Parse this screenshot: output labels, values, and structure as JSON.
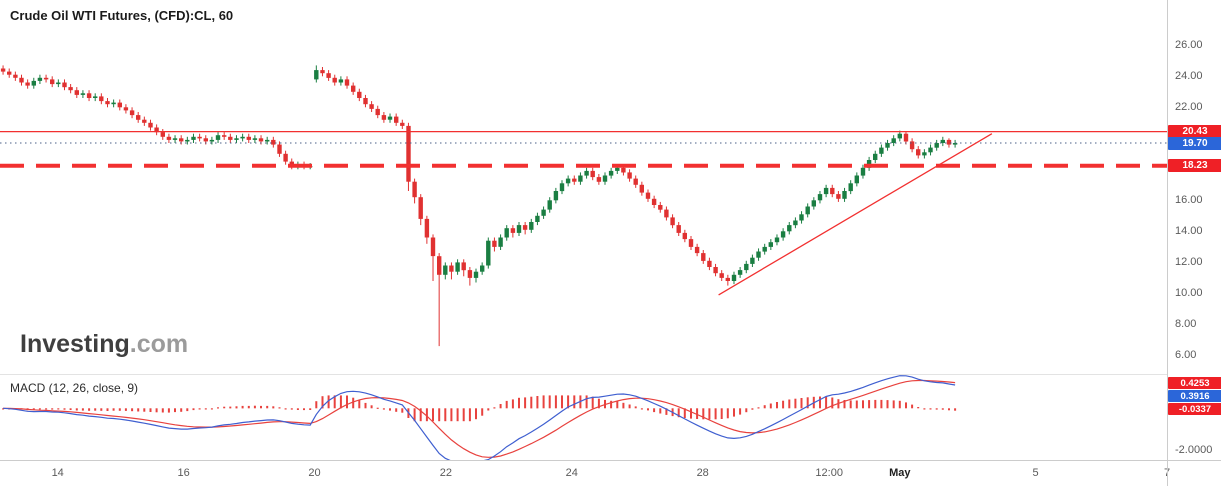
{
  "header": {
    "title": "Crude Oil WTI Futures, (CFD):CL, 60"
  },
  "watermark": {
    "brand": "Investing",
    "tld": ".com"
  },
  "macd": {
    "label": "MACD (12, 26, close, 9)"
  },
  "chart_data": {
    "type": "candlestick",
    "title": "Crude Oil WTI Futures, (CFD):CL, 60",
    "symbol": "(CFD):CL",
    "interval_minutes": "60",
    "grid": "off",
    "colors": {
      "up": "#1a7e42",
      "down": "#e03131",
      "level_red": "#f23030",
      "level_blue_dotted": "#4a5f87",
      "badge_red": "#ef2026",
      "badge_blue": "#2b66d9",
      "axis_text": "#5a5a5a"
    },
    "price_axis": {
      "ylim": [
        4.8,
        28.92
      ],
      "ticks": [
        {
          "label": "26.00",
          "value": 26
        },
        {
          "label": "24.00",
          "value": 24
        },
        {
          "label": "22.00",
          "value": 22
        },
        {
          "label": "16.00",
          "value": 16
        },
        {
          "label": "14.00",
          "value": 14
        },
        {
          "label": "12.00",
          "value": 12
        },
        {
          "label": "10.00",
          "value": 10
        },
        {
          "label": "8.00",
          "value": 8
        },
        {
          "label": "6.00",
          "value": 6
        }
      ],
      "badges": [
        {
          "label": "20.43",
          "value": 20.43,
          "color": "red"
        },
        {
          "label": "19.70",
          "value": 19.7,
          "color": "blue"
        },
        {
          "label": "18.23",
          "value": 18.23,
          "color": "red"
        }
      ]
    },
    "time_axis": {
      "bars_total": 190,
      "labels": [
        {
          "label": "14",
          "bar": 9.4
        },
        {
          "label": "16",
          "bar": 29.9
        },
        {
          "label": "20",
          "bar": 51.2
        },
        {
          "label": "22",
          "bar": 72.6
        },
        {
          "label": "24",
          "bar": 93.1
        },
        {
          "label": "28",
          "bar": 114.4
        },
        {
          "label": "12:00",
          "bar": 135.0
        },
        {
          "label": "May",
          "bar": 146.5,
          "strong": true
        },
        {
          "label": "5",
          "bar": 168.6
        },
        {
          "label": "7",
          "bar": 190.0
        }
      ]
    },
    "levels": [
      {
        "value": 20.43,
        "style": "solid",
        "width": 1.2,
        "color": "#f23030"
      },
      {
        "value": 19.7,
        "style": "dotted",
        "width": 1,
        "color": "#4a5f87"
      },
      {
        "value": 18.23,
        "style": "dashed",
        "width": 4,
        "color": "#f23030"
      }
    ],
    "trendline": {
      "from_bar": 117,
      "from_price": 9.9,
      "to_bar": 161.5,
      "to_price": 20.3,
      "width": 1.3,
      "color": "#f23030"
    },
    "candles": [
      [
        24.5,
        24.7,
        24.1,
        24.3
      ],
      [
        24.3,
        24.5,
        23.9,
        24.1
      ],
      [
        24.1,
        24.3,
        23.7,
        23.9
      ],
      [
        23.9,
        24.1,
        23.4,
        23.6
      ],
      [
        23.6,
        23.8,
        23.2,
        23.4
      ],
      [
        23.4,
        23.9,
        23.2,
        23.7
      ],
      [
        23.7,
        24.1,
        23.5,
        23.9
      ],
      [
        23.9,
        24.1,
        23.6,
        23.8
      ],
      [
        23.8,
        24.0,
        23.3,
        23.5
      ],
      [
        23.5,
        23.8,
        23.3,
        23.6
      ],
      [
        23.6,
        23.8,
        23.1,
        23.3
      ],
      [
        23.3,
        23.5,
        22.9,
        23.1
      ],
      [
        23.1,
        23.3,
        22.6,
        22.8
      ],
      [
        22.8,
        23.1,
        22.6,
        22.9
      ],
      [
        22.9,
        23.1,
        22.4,
        22.6
      ],
      [
        22.6,
        22.9,
        22.4,
        22.7
      ],
      [
        22.7,
        22.9,
        22.2,
        22.4
      ],
      [
        22.4,
        22.6,
        22.0,
        22.2
      ],
      [
        22.2,
        22.5,
        22.0,
        22.3
      ],
      [
        22.3,
        22.5,
        21.8,
        22.0
      ],
      [
        22.0,
        22.2,
        21.6,
        21.8
      ],
      [
        21.8,
        22.0,
        21.3,
        21.5
      ],
      [
        21.5,
        21.7,
        21.0,
        21.2
      ],
      [
        21.2,
        21.4,
        20.8,
        21.0
      ],
      [
        21.0,
        21.2,
        20.5,
        20.7
      ],
      [
        20.7,
        20.9,
        20.2,
        20.4
      ],
      [
        20.4,
        20.6,
        19.9,
        20.1
      ],
      [
        20.1,
        20.3,
        19.7,
        19.9
      ],
      [
        19.9,
        20.2,
        19.7,
        20.0
      ],
      [
        20.0,
        20.2,
        19.6,
        19.8
      ],
      [
        19.8,
        20.1,
        19.6,
        19.9
      ],
      [
        19.9,
        20.3,
        19.7,
        20.1
      ],
      [
        20.1,
        20.3,
        19.8,
        20.0
      ],
      [
        20.0,
        20.2,
        19.6,
        19.8
      ],
      [
        19.8,
        20.1,
        19.6,
        19.9
      ],
      [
        19.9,
        20.4,
        19.7,
        20.2
      ],
      [
        20.2,
        20.4,
        19.9,
        20.1
      ],
      [
        20.1,
        20.3,
        19.7,
        19.9
      ],
      [
        19.9,
        20.2,
        19.7,
        20.0
      ],
      [
        20.0,
        20.3,
        19.8,
        20.1
      ],
      [
        20.1,
        20.3,
        19.7,
        19.9
      ],
      [
        19.9,
        20.2,
        19.7,
        20.0
      ],
      [
        20.0,
        20.2,
        19.6,
        19.8
      ],
      [
        19.8,
        20.1,
        19.6,
        19.9
      ],
      [
        19.9,
        20.1,
        19.4,
        19.6
      ],
      [
        19.6,
        19.8,
        18.8,
        19.0
      ],
      [
        19.0,
        19.2,
        18.3,
        18.5
      ],
      [
        18.5,
        18.7,
        18.0,
        18.2
      ],
      [
        18.2,
        18.5,
        18.0,
        18.3
      ],
      [
        18.3,
        18.5,
        18.0,
        18.2
      ],
      [
        18.2,
        18.4,
        18.0,
        18.2
      ],
      [
        23.8,
        24.7,
        23.6,
        24.4
      ],
      [
        24.4,
        24.6,
        24.0,
        24.2
      ],
      [
        24.2,
        24.4,
        23.7,
        23.9
      ],
      [
        23.9,
        24.1,
        23.4,
        23.6
      ],
      [
        23.6,
        24.0,
        23.4,
        23.8
      ],
      [
        23.8,
        24.0,
        23.2,
        23.4
      ],
      [
        23.4,
        23.6,
        22.8,
        23.0
      ],
      [
        23.0,
        23.2,
        22.4,
        22.6
      ],
      [
        22.6,
        22.8,
        22.0,
        22.2
      ],
      [
        22.2,
        22.4,
        21.7,
        21.9
      ],
      [
        21.9,
        22.1,
        21.3,
        21.5
      ],
      [
        21.5,
        21.7,
        21.0,
        21.2
      ],
      [
        21.2,
        21.6,
        21.0,
        21.4
      ],
      [
        21.4,
        21.6,
        20.8,
        21.0
      ],
      [
        21.0,
        21.2,
        20.6,
        20.8
      ],
      [
        20.8,
        21.0,
        16.6,
        17.2
      ],
      [
        17.2,
        17.4,
        15.8,
        16.2
      ],
      [
        16.2,
        16.4,
        14.4,
        14.8
      ],
      [
        14.8,
        15.0,
        13.2,
        13.6
      ],
      [
        13.6,
        13.8,
        10.8,
        12.4
      ],
      [
        12.4,
        12.6,
        6.6,
        11.2
      ],
      [
        11.2,
        12.0,
        10.9,
        11.8
      ],
      [
        11.8,
        12.0,
        10.9,
        11.4
      ],
      [
        11.4,
        12.2,
        11.2,
        12.0
      ],
      [
        12.0,
        12.2,
        11.1,
        11.5
      ],
      [
        11.5,
        11.7,
        10.5,
        11.0
      ],
      [
        11.0,
        11.6,
        10.7,
        11.4
      ],
      [
        11.4,
        12.0,
        11.2,
        11.8
      ],
      [
        11.8,
        13.6,
        11.6,
        13.4
      ],
      [
        13.4,
        13.6,
        12.7,
        13.0
      ],
      [
        13.0,
        13.8,
        12.8,
        13.6
      ],
      [
        13.6,
        14.4,
        13.4,
        14.2
      ],
      [
        14.2,
        14.4,
        13.6,
        13.9
      ],
      [
        13.9,
        14.6,
        13.7,
        14.4
      ],
      [
        14.4,
        14.6,
        13.8,
        14.1
      ],
      [
        14.1,
        14.8,
        13.9,
        14.6
      ],
      [
        14.6,
        15.2,
        14.4,
        15.0
      ],
      [
        15.0,
        15.6,
        14.8,
        15.4
      ],
      [
        15.4,
        16.2,
        15.2,
        16.0
      ],
      [
        16.0,
        16.8,
        15.8,
        16.6
      ],
      [
        16.6,
        17.3,
        16.4,
        17.1
      ],
      [
        17.1,
        17.6,
        16.9,
        17.4
      ],
      [
        17.4,
        17.6,
        17.0,
        17.2
      ],
      [
        17.2,
        17.8,
        17.0,
        17.6
      ],
      [
        17.6,
        18.1,
        17.4,
        17.9
      ],
      [
        17.9,
        18.1,
        17.3,
        17.5
      ],
      [
        17.5,
        17.7,
        17.0,
        17.2
      ],
      [
        17.2,
        17.8,
        17.0,
        17.6
      ],
      [
        17.6,
        18.1,
        17.4,
        17.9
      ],
      [
        17.9,
        18.3,
        17.7,
        18.1
      ],
      [
        18.1,
        18.3,
        17.6,
        17.8
      ],
      [
        17.8,
        18.0,
        17.2,
        17.4
      ],
      [
        17.4,
        17.6,
        16.8,
        17.0
      ],
      [
        17.0,
        17.2,
        16.3,
        16.5
      ],
      [
        16.5,
        16.7,
        15.9,
        16.1
      ],
      [
        16.1,
        16.3,
        15.5,
        15.7
      ],
      [
        15.7,
        15.9,
        15.2,
        15.4
      ],
      [
        15.4,
        15.6,
        14.7,
        14.9
      ],
      [
        14.9,
        15.1,
        14.2,
        14.4
      ],
      [
        14.4,
        14.6,
        13.7,
        13.9
      ],
      [
        13.9,
        14.1,
        13.3,
        13.5
      ],
      [
        13.5,
        13.7,
        12.8,
        13.0
      ],
      [
        13.0,
        13.2,
        12.4,
        12.6
      ],
      [
        12.6,
        12.8,
        11.9,
        12.1
      ],
      [
        12.1,
        12.3,
        11.5,
        11.7
      ],
      [
        11.7,
        11.9,
        11.1,
        11.3
      ],
      [
        11.3,
        11.5,
        10.8,
        11.0
      ],
      [
        11.0,
        11.2,
        10.5,
        10.8
      ],
      [
        10.8,
        11.4,
        10.6,
        11.2
      ],
      [
        11.2,
        11.7,
        11.0,
        11.5
      ],
      [
        11.5,
        12.1,
        11.3,
        11.9
      ],
      [
        11.9,
        12.5,
        11.7,
        12.3
      ],
      [
        12.3,
        12.9,
        12.1,
        12.7
      ],
      [
        12.7,
        13.2,
        12.5,
        13.0
      ],
      [
        13.0,
        13.5,
        12.8,
        13.3
      ],
      [
        13.3,
        13.8,
        13.1,
        13.6
      ],
      [
        13.6,
        14.2,
        13.4,
        14.0
      ],
      [
        14.0,
        14.6,
        13.8,
        14.4
      ],
      [
        14.4,
        14.9,
        14.2,
        14.7
      ],
      [
        14.7,
        15.3,
        14.5,
        15.1
      ],
      [
        15.1,
        15.8,
        14.9,
        15.6
      ],
      [
        15.6,
        16.2,
        15.4,
        16.0
      ],
      [
        16.0,
        16.6,
        15.8,
        16.4
      ],
      [
        16.4,
        17.0,
        16.2,
        16.8
      ],
      [
        16.8,
        17.0,
        16.2,
        16.4
      ],
      [
        16.4,
        16.6,
        15.9,
        16.1
      ],
      [
        16.1,
        16.8,
        15.9,
        16.6
      ],
      [
        16.6,
        17.3,
        16.4,
        17.1
      ],
      [
        17.1,
        17.8,
        16.9,
        17.6
      ],
      [
        17.6,
        18.3,
        17.4,
        18.1
      ],
      [
        18.1,
        18.8,
        17.9,
        18.6
      ],
      [
        18.6,
        19.2,
        18.4,
        19.0
      ],
      [
        19.0,
        19.6,
        18.8,
        19.4
      ],
      [
        19.4,
        19.9,
        19.2,
        19.7
      ],
      [
        19.7,
        20.2,
        19.5,
        20.0
      ],
      [
        20.0,
        20.5,
        19.8,
        20.3
      ],
      [
        20.3,
        20.4,
        19.6,
        19.8
      ],
      [
        19.8,
        20.0,
        19.1,
        19.3
      ],
      [
        19.3,
        19.5,
        18.7,
        18.9
      ],
      [
        18.9,
        19.3,
        18.7,
        19.1
      ],
      [
        19.1,
        19.6,
        18.9,
        19.4
      ],
      [
        19.4,
        19.9,
        19.2,
        19.7
      ],
      [
        19.7,
        20.1,
        19.5,
        19.9
      ],
      [
        19.9,
        20.0,
        19.4,
        19.6
      ],
      [
        19.6,
        19.9,
        19.4,
        19.7
      ]
    ],
    "macd_panel": {
      "label": "MACD (12, 26, close, 9)",
      "params": [
        12,
        26,
        "close",
        9
      ],
      "ylim": [
        -2.45,
        1.55
      ],
      "ticks": [
        {
          "label": "-2.0000",
          "value": -2
        }
      ],
      "badges": [
        {
          "label": "0.4253",
          "value": 0.4253,
          "color": "red"
        },
        {
          "label": "0.3916",
          "value": 0.3916,
          "color": "blue"
        },
        {
          "label": "-0.0337",
          "value": -0.0337,
          "color": "red"
        }
      ],
      "colors": {
        "macd": "#3f5fd0",
        "signal": "#e8423e",
        "hist": "#e8423e"
      }
    }
  }
}
